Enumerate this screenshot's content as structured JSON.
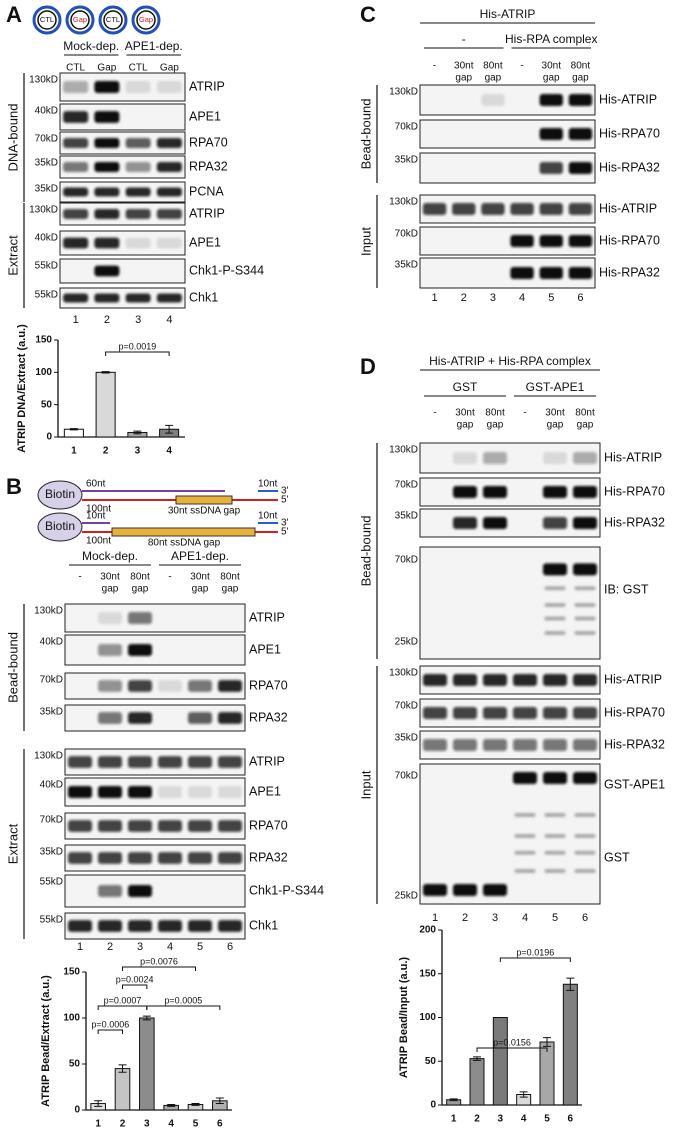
{
  "panels": {
    "a": {
      "label": "A",
      "circles": [
        "CTL",
        "Gap",
        "CTL",
        "Gap"
      ],
      "groups": [
        "Mock-dep.",
        "APE1-dep."
      ],
      "lanes": [
        {
          "top": "CTL"
        },
        {
          "top": "Gap"
        },
        {
          "top": "CTL"
        },
        {
          "top": "Gap"
        }
      ],
      "lane_numbers": [
        "1",
        "2",
        "3",
        "4"
      ],
      "sections": [
        {
          "name": "DNA-bound",
          "rows": [
            {
              "markers": [
                "130kD"
              ],
              "proteins": [
                "ATRIP"
              ]
            },
            {
              "markers": [
                "40kD"
              ],
              "proteins": [
                "APE1"
              ]
            },
            {
              "markers": [
                "70kD"
              ],
              "proteins": [
                "RPA70"
              ]
            },
            {
              "markers": [
                "35kD"
              ],
              "proteins": [
                "RPA32"
              ]
            },
            {
              "markers": [
                "35kD"
              ],
              "proteins": [
                "PCNA"
              ]
            }
          ]
        },
        {
          "name": "Extract",
          "rows": [
            {
              "markers": [
                "130kD"
              ],
              "proteins": [
                "ATRIP"
              ]
            },
            {
              "markers": [
                "40kD"
              ],
              "proteins": [
                "APE1"
              ]
            },
            {
              "markers": [
                "55kD"
              ],
              "proteins": [
                "Chk1-P-S344"
              ]
            },
            {
              "markers": [
                "55kD"
              ],
              "proteins": [
                "Chk1"
              ]
            }
          ]
        }
      ]
    },
    "b": {
      "label": "B",
      "schematics": [
        {
          "biotin": "Biotin",
          "upper_left": "60nt",
          "upper_right": "10nt",
          "end_3": "3'",
          "lower_left": "100nt",
          "end_5": "5'",
          "gap": "30nt ssDNA gap"
        },
        {
          "biotin": "Biotin",
          "upper_left": "10nt",
          "upper_right": "10nt",
          "end_3": "3'",
          "lower_left": "100nt",
          "end_5": "5'",
          "gap": "80nt ssDNA gap"
        }
      ],
      "groups": [
        "Mock-dep.",
        "APE1-dep."
      ],
      "lanes": [
        {
          "top": "-"
        },
        {
          "top": "30nt",
          "bottom": "gap"
        },
        {
          "top": "80nt",
          "bottom": "gap"
        },
        {
          "top": "-"
        },
        {
          "top": "30nt",
          "bottom": "gap"
        },
        {
          "top": "80nt",
          "bottom": "gap"
        }
      ],
      "lane_numbers": [
        "1",
        "2",
        "3",
        "4",
        "5",
        "6"
      ],
      "sections": [
        {
          "name": "Bead-bound",
          "rows": [
            {
              "markers": [
                "130kD"
              ],
              "proteins": [
                "ATRIP"
              ]
            },
            {
              "markers": [
                "40kD"
              ],
              "proteins": [
                "APE1"
              ]
            },
            {
              "markers": [
                "70kD"
              ],
              "proteins": [
                "RPA70"
              ]
            },
            {
              "markers": [
                "35kD"
              ],
              "proteins": [
                "RPA32"
              ]
            }
          ]
        },
        {
          "name": "Extract",
          "rows": [
            {
              "markers": [
                "130kD"
              ],
              "proteins": [
                "ATRIP"
              ]
            },
            {
              "markers": [
                "40kD"
              ],
              "proteins": [
                "APE1"
              ]
            },
            {
              "markers": [
                "70kD"
              ],
              "proteins": [
                "RPA70"
              ]
            },
            {
              "markers": [
                "35kD"
              ],
              "proteins": [
                "RPA32"
              ]
            },
            {
              "markers": [
                "55kD"
              ],
              "proteins": [
                "Chk1-P-S344"
              ]
            },
            {
              "markers": [
                "55kD"
              ],
              "proteins": [
                "Chk1"
              ]
            }
          ]
        }
      ]
    },
    "c": {
      "label": "C",
      "title": "His-ATRIP",
      "groups": [
        "-",
        "His-RPA complex"
      ],
      "lanes": [
        {
          "top": "-"
        },
        {
          "top": "30nt",
          "bottom": "gap"
        },
        {
          "top": "80nt",
          "bottom": "gap"
        },
        {
          "top": "-"
        },
        {
          "top": "30nt",
          "bottom": "gap"
        },
        {
          "top": "80nt",
          "bottom": "gap"
        }
      ],
      "lane_numbers": [
        "1",
        "2",
        "3",
        "4",
        "5",
        "6"
      ],
      "sections": [
        {
          "name": "Bead-bound",
          "rows": [
            {
              "markers": [
                "130kD"
              ],
              "proteins": [
                "His-ATRIP"
              ]
            },
            {
              "markers": [
                "70kD"
              ],
              "proteins": [
                "His-RPA70"
              ]
            },
            {
              "markers": [
                "35kD"
              ],
              "proteins": [
                "His-RPA32"
              ]
            }
          ]
        },
        {
          "name": "Input",
          "rows": [
            {
              "markers": [
                "130kD"
              ],
              "proteins": [
                "His-ATRIP"
              ]
            },
            {
              "markers": [
                "70kD"
              ],
              "proteins": [
                "His-RPA70"
              ]
            },
            {
              "markers": [
                "35kD"
              ],
              "proteins": [
                "His-RPA32"
              ]
            }
          ]
        }
      ]
    },
    "d": {
      "label": "D",
      "title": "His-ATRIP + His-RPA complex",
      "groups": [
        "GST",
        "GST-APE1"
      ],
      "lanes": [
        {
          "top": "-"
        },
        {
          "top": "30nt",
          "bottom": "gap"
        },
        {
          "top": "80nt",
          "bottom": "gap"
        },
        {
          "top": "-"
        },
        {
          "top": "30nt",
          "bottom": "gap"
        },
        {
          "top": "80nt",
          "bottom": "gap"
        }
      ],
      "lane_numbers": [
        "1",
        "2",
        "3",
        "4",
        "5",
        "6"
      ],
      "sections": [
        {
          "name": "Bead-bound",
          "rows": [
            {
              "markers": [
                "130kD"
              ],
              "proteins": [
                "His-ATRIP"
              ]
            },
            {
              "markers": [
                "70kD"
              ],
              "proteins": [
                "His-RPA70"
              ]
            },
            {
              "markers": [
                "35kD"
              ],
              "proteins": [
                "His-RPA32"
              ]
            },
            {
              "markers": [
                "70kD",
                "25kD"
              ],
              "proteins": [
                "IB: GST"
              ]
            }
          ]
        },
        {
          "name": "Input",
          "rows": [
            {
              "markers": [
                "130kD"
              ],
              "proteins": [
                "His-ATRIP"
              ]
            },
            {
              "markers": [
                "70kD"
              ],
              "proteins": [
                "His-RPA70"
              ]
            },
            {
              "markers": [
                "35kD"
              ],
              "proteins": [
                "His-RPA32"
              ]
            },
            {
              "markers": [
                "70kD",
                "25kD"
              ],
              "proteins": [
                "GST-APE1",
                "GST"
              ]
            }
          ]
        }
      ]
    }
  },
  "chart_data": [
    {
      "type": "bar",
      "y_label": "ATRIP DNA/Extract (a.u.)",
      "categories": [
        "1",
        "2",
        "3",
        "4"
      ],
      "values": [
        12,
        100,
        7,
        12
      ],
      "errors": [
        1,
        1,
        2,
        6
      ],
      "colors": [
        "#ffffff",
        "#d9d9d9",
        "#a6a6a6",
        "#7f7f7f"
      ],
      "ylim": [
        0,
        150
      ],
      "yticks": [
        0,
        50,
        100,
        150
      ],
      "annotations": [
        "p=0.0019"
      ]
    },
    {
      "type": "bar",
      "y_label": "ATRIP Bead/Extract (a.u.)",
      "categories": [
        "1",
        "2",
        "3",
        "4",
        "5",
        "6"
      ],
      "values": [
        7,
        45,
        100,
        5,
        6,
        10
      ],
      "errors": [
        3,
        4,
        2,
        1,
        1,
        3
      ],
      "colors": [
        "#e0e0e0",
        "#c4c4c4",
        "#8c8c8c",
        "#a8a8a8",
        "#d0d0d0",
        "#b0b0b0"
      ],
      "ylim": [
        0,
        150
      ],
      "yticks": [
        0,
        50,
        100,
        150
      ],
      "annotations": [
        "p=0.0076",
        "p=0.0024",
        "p=0.0007",
        "p=0.0005",
        "p=0.0006"
      ]
    },
    {
      "type": "bar",
      "y_label": "ATRIP Bead/Input (a.u.)",
      "categories": [
        "1",
        "2",
        "3",
        "4",
        "5",
        "6"
      ],
      "values": [
        6,
        53,
        100,
        12,
        72,
        138
      ],
      "errors": [
        1,
        2,
        0,
        3,
        5,
        7
      ],
      "colors": [
        "#9a9a9a",
        "#8c8c8c",
        "#7a7a7a",
        "#dadada",
        "#a8a8a8",
        "#808080"
      ],
      "ylim": [
        0,
        200
      ],
      "yticks": [
        0,
        50,
        100,
        150,
        200
      ],
      "annotations": [
        "p=0.0156",
        "p=0.0196"
      ]
    }
  ]
}
